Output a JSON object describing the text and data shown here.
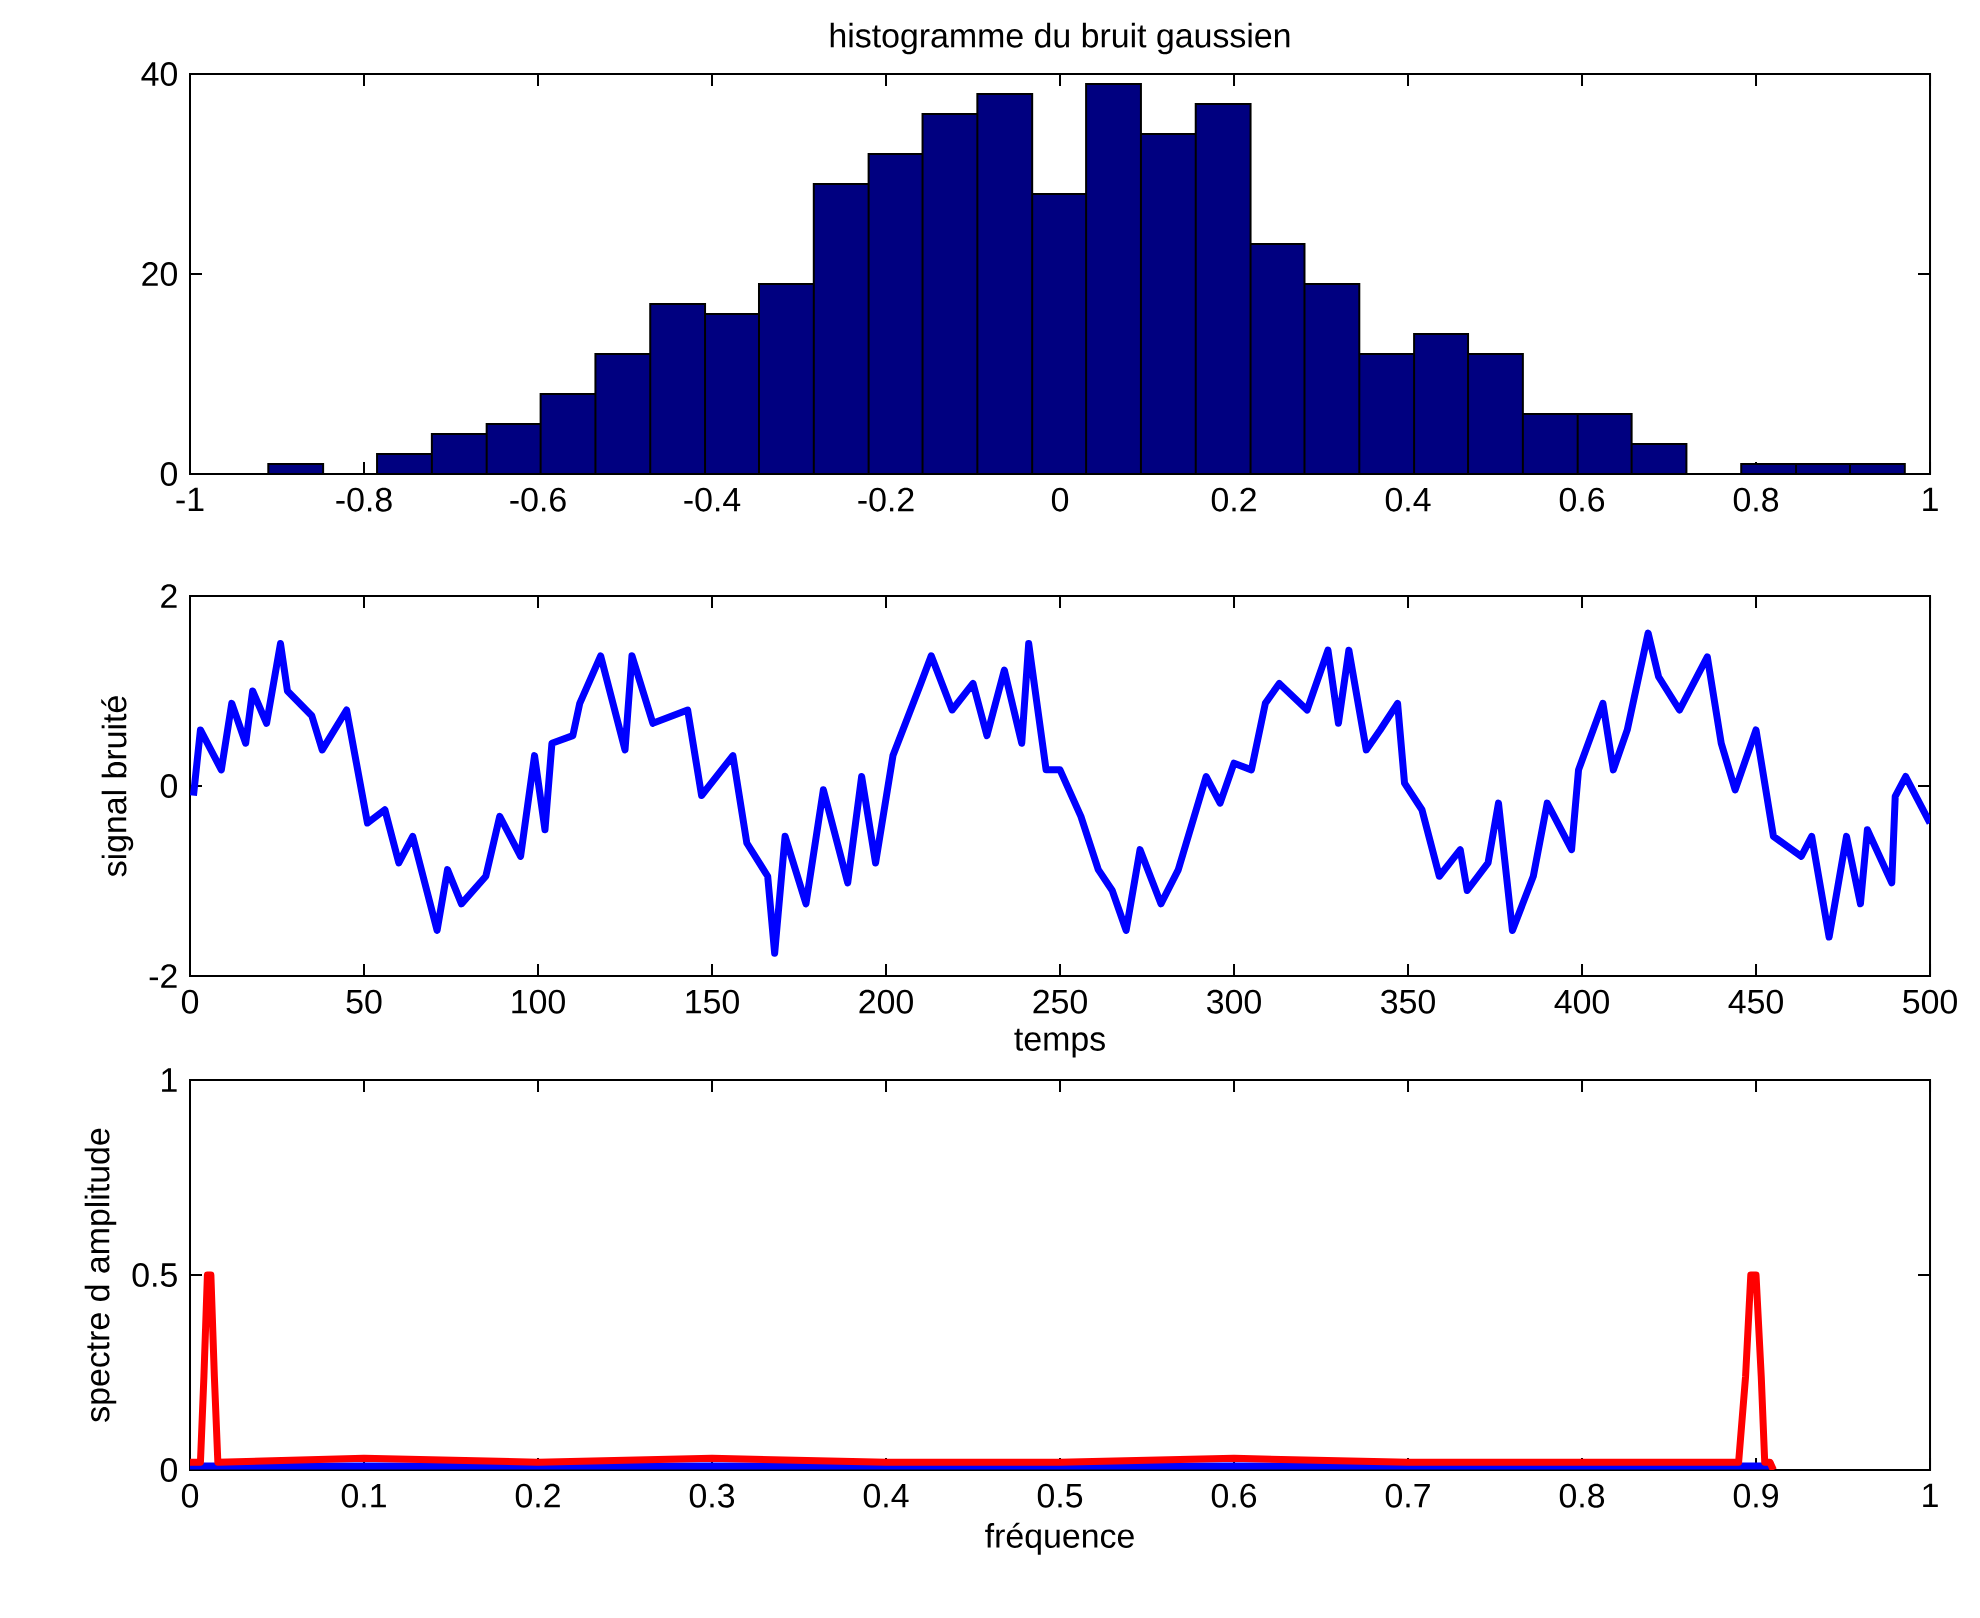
{
  "chart_data": [
    {
      "type": "histogram",
      "title": "histogramme du bruit gaussien",
      "color": "#000080",
      "bins": [
        -0.91,
        -0.847,
        -0.785,
        -0.722,
        -0.659,
        -0.597,
        -0.534,
        -0.471,
        -0.408,
        -0.346,
        -0.283,
        -0.22,
        -0.158,
        -0.095,
        -0.032,
        0.03,
        0.093,
        0.156,
        0.219,
        0.281,
        0.344,
        0.407,
        0.469,
        0.532,
        0.595,
        0.657,
        0.72,
        0.783,
        0.846,
        0.908,
        0.971
      ],
      "values": [
        1,
        0,
        2,
        4,
        5,
        8,
        12,
        17,
        16,
        19,
        29,
        32,
        36,
        38,
        28,
        39,
        34,
        37,
        23,
        19,
        12,
        14,
        12,
        6,
        6,
        3,
        0,
        1,
        1,
        1
      ],
      "xlim": [
        -1,
        1
      ],
      "ylim": [
        0,
        40
      ],
      "xticks": [
        -1,
        -0.8,
        -0.6,
        -0.4,
        -0.2,
        0,
        0.2,
        0.4,
        0.6,
        0.8,
        1
      ],
      "yticks": [
        0,
        20,
        40
      ]
    },
    {
      "type": "line",
      "xlabel": "temps",
      "ylabel": "signal bruité",
      "series": [
        {
          "color": "#0000ff",
          "x": [
            1,
            3,
            9,
            12,
            16,
            18,
            22,
            26,
            28,
            35,
            38,
            45,
            51,
            56,
            60,
            64,
            71,
            74,
            78,
            85,
            89,
            95,
            99,
            102,
            104,
            110,
            112,
            118,
            125,
            127,
            133,
            143,
            147,
            156,
            160,
            166,
            168,
            171,
            177,
            182,
            189,
            193,
            197,
            202,
            210,
            213,
            219,
            225,
            229,
            234,
            239,
            241,
            246,
            250,
            256,
            261,
            265,
            269,
            273,
            279,
            284,
            288,
            292,
            296,
            300,
            305,
            309,
            313,
            321,
            327,
            330,
            333,
            338,
            342,
            347,
            349,
            354,
            359,
            365,
            367,
            373,
            376,
            380,
            386,
            390,
            397,
            399,
            406,
            409,
            413,
            419,
            422,
            428,
            436,
            440,
            444,
            450,
            455,
            463,
            466,
            471,
            476,
            480,
            482,
            489,
            490,
            493,
            500
          ],
          "values": [
            -0.1,
            0.59,
            0.17,
            0.87,
            0.45,
            1.0,
            0.66,
            1.5,
            1.0,
            0.74,
            0.38,
            0.8,
            -0.39,
            -0.25,
            -0.81,
            -0.53,
            -1.52,
            -0.88,
            -1.24,
            -0.95,
            -0.32,
            -0.74,
            0.32,
            -0.46,
            0.45,
            0.53,
            0.87,
            1.37,
            0.38,
            1.37,
            0.66,
            0.8,
            -0.1,
            0.32,
            -0.6,
            -0.95,
            -1.76,
            -0.53,
            -1.24,
            -0.04,
            -1.02,
            0.1,
            -0.81,
            0.32,
            1.08,
            1.37,
            0.8,
            1.08,
            0.53,
            1.22,
            0.45,
            1.5,
            0.17,
            0.17,
            -0.32,
            -0.88,
            -1.1,
            -1.52,
            -0.67,
            -1.24,
            -0.88,
            -0.39,
            0.1,
            -0.18,
            0.24,
            0.17,
            0.87,
            1.08,
            0.8,
            1.43,
            0.66,
            1.43,
            0.38,
            0.59,
            0.87,
            0.03,
            -0.25,
            -0.95,
            -0.67,
            -1.1,
            -0.81,
            -0.18,
            -1.52,
            -0.95,
            -0.18,
            -0.67,
            0.17,
            0.87,
            0.17,
            0.59,
            1.61,
            1.15,
            0.8,
            1.36,
            0.45,
            -0.04,
            0.59,
            -0.53,
            -0.74,
            -0.53,
            -1.59,
            -0.53,
            -1.24,
            -0.46,
            -1.02,
            -0.11,
            0.1,
            -0.39
          ]
        }
      ],
      "xlim": [
        0,
        500
      ],
      "ylim": [
        -2,
        2
      ],
      "xticks": [
        0,
        50,
        100,
        150,
        200,
        250,
        300,
        350,
        400,
        450,
        500
      ],
      "yticks": [
        -2,
        0,
        2
      ]
    },
    {
      "type": "line",
      "xlabel": "fréquence",
      "ylabel": "spectre d amplitude",
      "series": [
        {
          "color": "#0000ff",
          "x": [
            0,
            0.2,
            0.4,
            0.6,
            0.8,
            0.91
          ],
          "values": [
            0.01,
            0.01,
            0.01,
            0.01,
            0.01,
            0.01
          ]
        },
        {
          "color": "#ff0000",
          "x": [
            0,
            0.006,
            0.008,
            0.01,
            0.012,
            0.014,
            0.016,
            0.1,
            0.2,
            0.3,
            0.4,
            0.5,
            0.6,
            0.7,
            0.8,
            0.89,
            0.894,
            0.897,
            0.9,
            0.903,
            0.905,
            0.908,
            0.91
          ],
          "values": [
            0.02,
            0.02,
            0.24,
            0.5,
            0.5,
            0.24,
            0.02,
            0.03,
            0.02,
            0.03,
            0.02,
            0.02,
            0.03,
            0.02,
            0.02,
            0.02,
            0.24,
            0.5,
            0.5,
            0.24,
            0.02,
            0.02,
            0
          ]
        }
      ],
      "xlim": [
        0,
        1
      ],
      "ylim": [
        0,
        1
      ],
      "xticks": [
        0,
        0.1,
        0.2,
        0.3,
        0.4,
        0.5,
        0.6,
        0.7,
        0.8,
        0.9,
        1
      ],
      "yticks": [
        0,
        0.5,
        1
      ]
    }
  ]
}
